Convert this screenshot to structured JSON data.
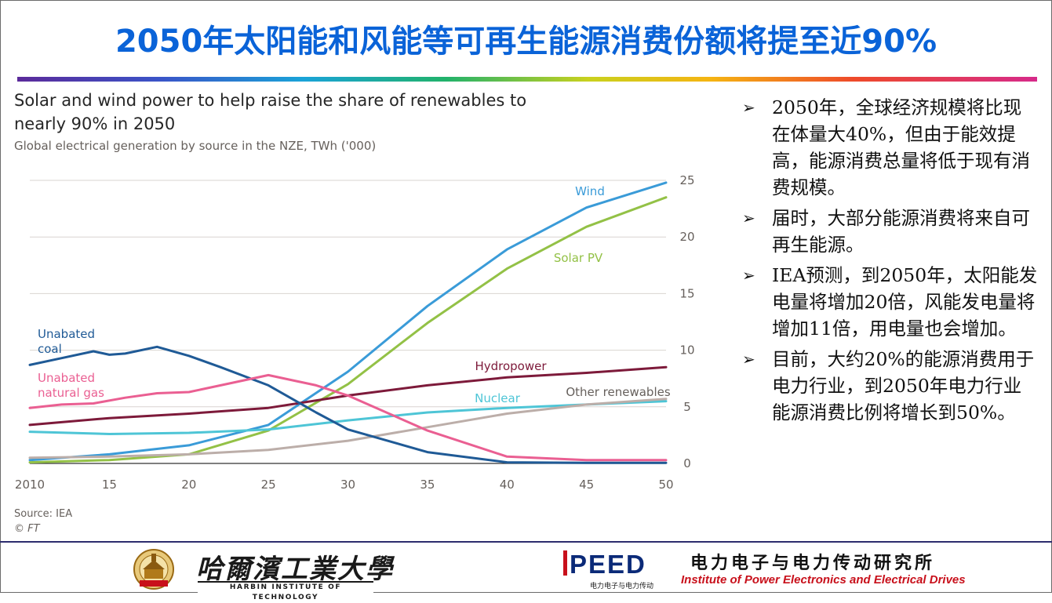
{
  "slide": {
    "title": "2050年太阳能和风能等可再生能源消费份额将提至近90%",
    "bullets": [
      "2050年，全球经济规模将比现在体量大40%，但由于能效提高，能源消费总量将低于现有消费规模。",
      "届时，大部分能源消费将来自可再生能源。",
      "IEA预测，到2050年，太阳能发电量将增加20倍，风能发电量将增加11倍，用电量也会增加。",
      "目前，大约20%的能源消费用于电力行业，到2050年电力行业能源消费比例将增长到50%。"
    ],
    "bullet_marker": "➢"
  },
  "footer": {
    "university_cn": "哈爾濱工業大學",
    "university_en": "HARBIN INSTITUTE OF TECHNOLOGY",
    "institute_logo": "PEED",
    "institute_logo_sub": "电力电子与电力传动",
    "institute_cn": "电力电子与电力传动研究所",
    "institute_en": "Institute of Power Electronics and Electrical Drives"
  },
  "colors": {
    "title_blue": "#0a63d8",
    "wind": "#3a9bd8",
    "solar": "#93c146",
    "hydro": "#7d1a3a",
    "nuclear": "#4ec5d6",
    "other": "#bcaea9",
    "coal": "#1f5a96",
    "gas": "#ea5f92",
    "institute_red": "#c8101b"
  },
  "chart_data": {
    "type": "line",
    "title": "Solar and wind power to help raise the share of renewables to nearly 90% in 2050",
    "subtitle": "Global electrical generation by source in the NZE, TWh ('000)",
    "source_lines": [
      "Source: IEA",
      "© FT"
    ],
    "x_tick_labels": [
      "2010",
      "15",
      "20",
      "25",
      "30",
      "35",
      "40",
      "45",
      "50"
    ],
    "x_ticks": [
      2010,
      2015,
      2020,
      2025,
      2030,
      2035,
      2040,
      2045,
      2050
    ],
    "y_ticks": [
      0,
      5,
      10,
      15,
      20,
      25
    ],
    "xlim": [
      2010,
      2050
    ],
    "ylim": [
      0,
      25
    ],
    "grid": true,
    "y_axis_side": "right",
    "series": [
      {
        "name": "Wind",
        "color": "#3a9bd8",
        "label_lines": [
          "Wind"
        ],
        "x": [
          2010,
          2015,
          2020,
          2025,
          2030,
          2035,
          2040,
          2045,
          2050
        ],
        "values": [
          0.3,
          0.8,
          1.6,
          3.4,
          8.1,
          13.9,
          18.9,
          22.6,
          24.8
        ]
      },
      {
        "name": "Solar PV",
        "color": "#93c146",
        "label_lines": [
          "Solar PV"
        ],
        "x": [
          2010,
          2015,
          2020,
          2025,
          2030,
          2035,
          2040,
          2045,
          2050
        ],
        "values": [
          0.1,
          0.3,
          0.8,
          2.9,
          7.0,
          12.4,
          17.2,
          20.9,
          23.5
        ]
      },
      {
        "name": "Hydropower",
        "color": "#7d1a3a",
        "label_lines": [
          "Hydropower"
        ],
        "x": [
          2010,
          2015,
          2020,
          2025,
          2030,
          2035,
          2040,
          2045,
          2050
        ],
        "values": [
          3.4,
          4.0,
          4.4,
          4.9,
          6.0,
          6.9,
          7.6,
          8.0,
          8.5
        ]
      },
      {
        "name": "Nuclear",
        "color": "#4ec5d6",
        "label_lines": [
          "Nuclear"
        ],
        "x": [
          2010,
          2015,
          2020,
          2025,
          2030,
          2035,
          2040,
          2045,
          2050
        ],
        "values": [
          2.8,
          2.6,
          2.7,
          3.0,
          3.8,
          4.5,
          4.9,
          5.2,
          5.5
        ]
      },
      {
        "name": "Other renewables",
        "color": "#bcaea9",
        "label_lines": [
          "Other renewables"
        ],
        "x": [
          2010,
          2015,
          2020,
          2025,
          2030,
          2035,
          2040,
          2045,
          2050
        ],
        "values": [
          0.5,
          0.6,
          0.8,
          1.2,
          2.0,
          3.2,
          4.4,
          5.2,
          5.7
        ]
      },
      {
        "name": "Unabated coal",
        "color": "#1f5a96",
        "label_lines": [
          "Unabated",
          "coal"
        ],
        "x": [
          2010,
          2012,
          2014,
          2015,
          2016,
          2018,
          2020,
          2022,
          2025,
          2028,
          2030,
          2035,
          2040,
          2045,
          2050
        ],
        "values": [
          8.7,
          9.3,
          9.9,
          9.6,
          9.7,
          10.3,
          9.5,
          8.5,
          6.9,
          4.5,
          3.0,
          1.0,
          0.1,
          0.05,
          0.05
        ]
      },
      {
        "name": "Unabated natural gas",
        "color": "#ea5f92",
        "label_lines": [
          "Unabated",
          "natural gas"
        ],
        "x": [
          2010,
          2012,
          2014,
          2016,
          2018,
          2020,
          2022,
          2025,
          2028,
          2030,
          2035,
          2040,
          2045,
          2050
        ],
        "values": [
          4.9,
          5.2,
          5.3,
          5.8,
          6.2,
          6.3,
          6.9,
          7.8,
          6.9,
          6.0,
          2.9,
          0.6,
          0.3,
          0.3
        ]
      }
    ]
  }
}
